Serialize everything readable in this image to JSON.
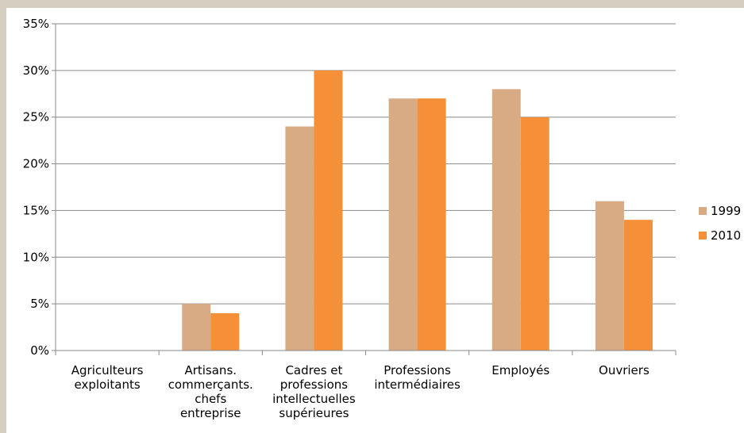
{
  "chart_data": {
    "type": "bar",
    "categories": [
      [
        "Agriculteurs",
        "exploitants"
      ],
      [
        "Artisans.",
        "commerçants.",
        "chefs",
        "entreprise"
      ],
      [
        "Cadres et",
        "professions",
        "intellectuelles",
        "supérieures"
      ],
      [
        "Professions",
        "intermédiaires"
      ],
      [
        "Employés"
      ],
      [
        "Ouvriers"
      ]
    ],
    "series": [
      {
        "name": "1999",
        "values": [
          0,
          5,
          24,
          27,
          28,
          16
        ],
        "color": "#d8ab85"
      },
      {
        "name": "2010",
        "values": [
          0,
          4,
          30,
          27,
          25,
          14
        ],
        "color": "#f59038"
      }
    ],
    "yticks": [
      "0%",
      "5%",
      "10%",
      "15%",
      "20%",
      "25%",
      "30%",
      "35%"
    ],
    "ylim": [
      0,
      35
    ],
    "grid": true,
    "legend_position": "right"
  }
}
